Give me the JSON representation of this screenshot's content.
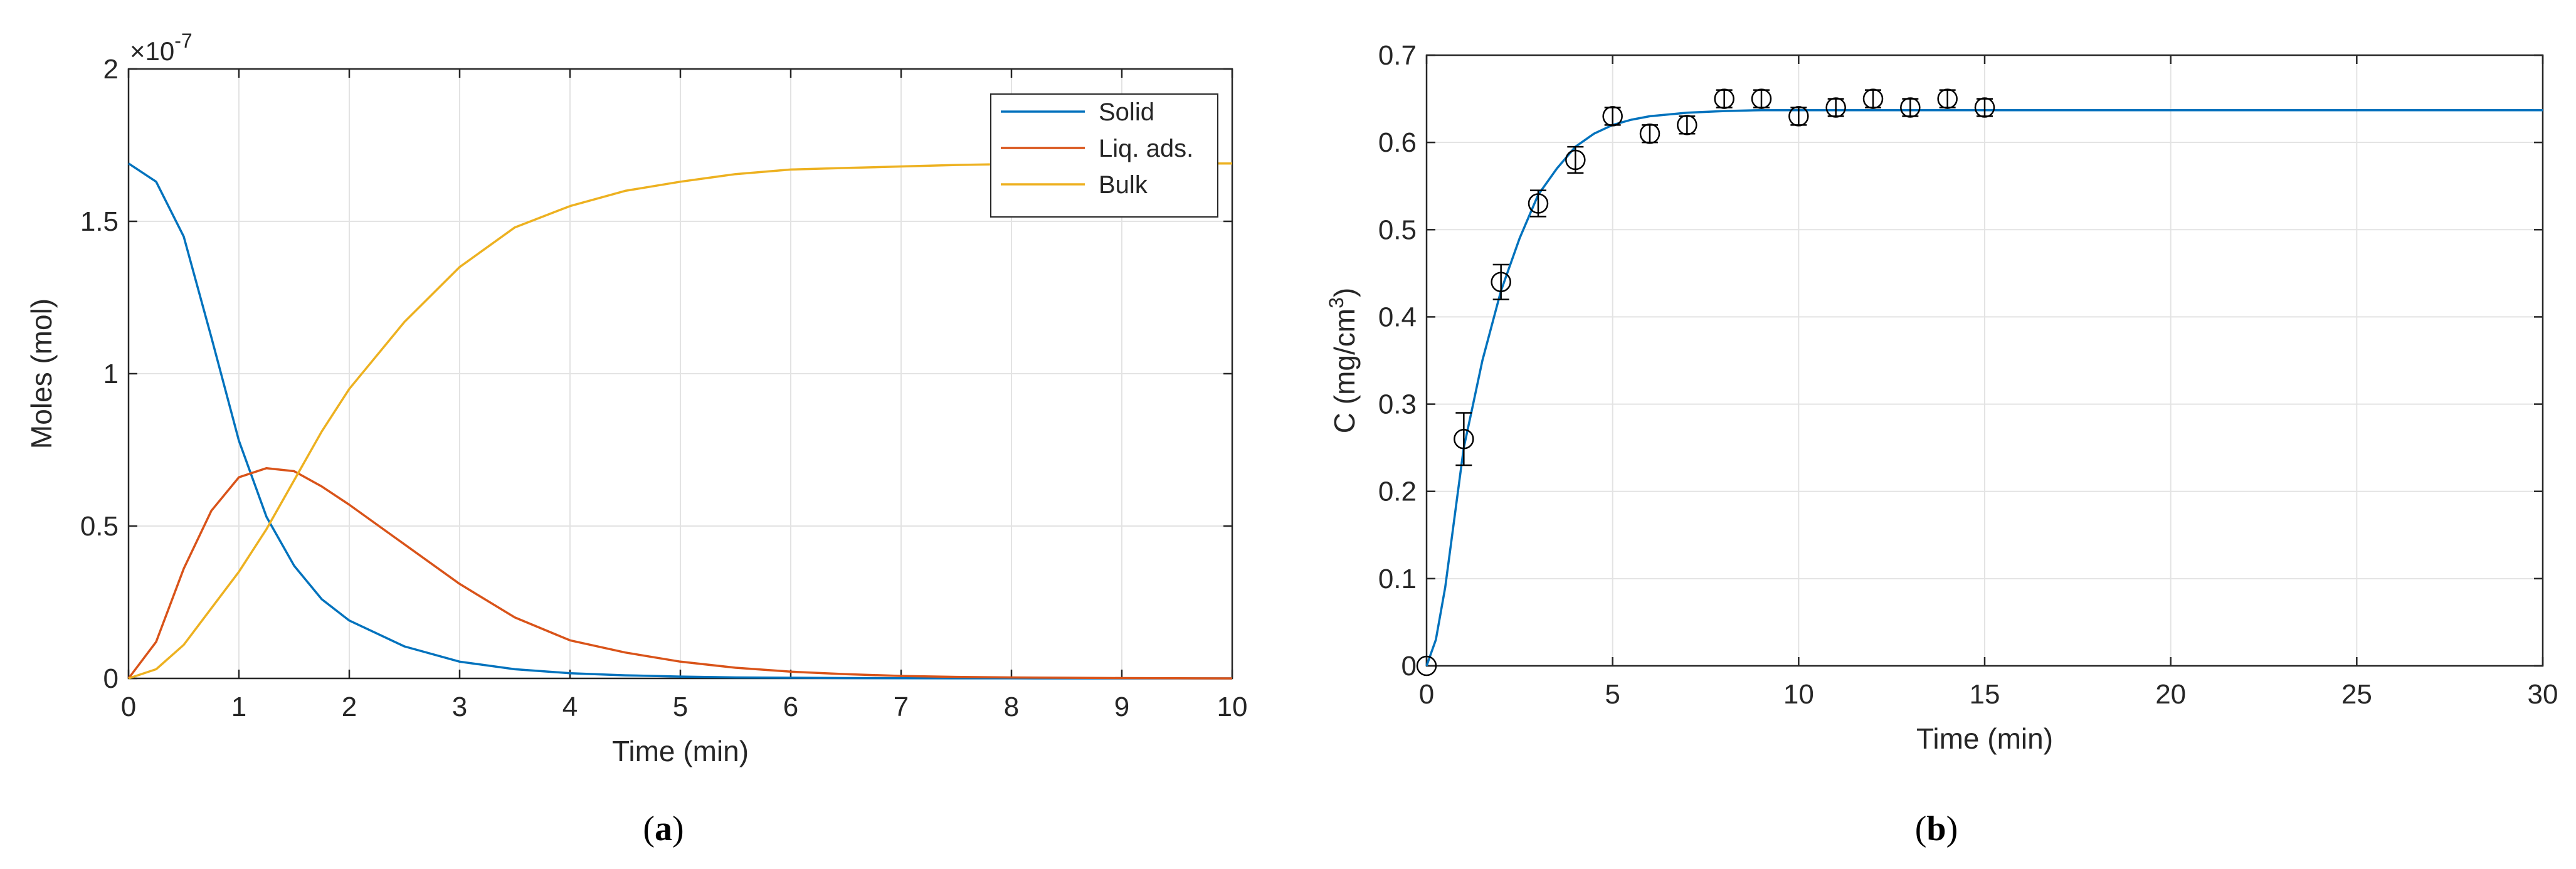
{
  "figure": {
    "panels": [
      {
        "caption_open": "(",
        "caption_letter": "a",
        "caption_close": ")"
      },
      {
        "caption_open": "(",
        "caption_letter": "b",
        "caption_close": ")"
      }
    ]
  },
  "chart_data": [
    {
      "type": "line",
      "panel": "a",
      "xlabel": "Time (min)",
      "ylabel": "Moles (mol)",
      "xlim": [
        0,
        10
      ],
      "ylim": [
        0,
        2
      ],
      "y_exponent_label": "×10",
      "y_exponent_power": "-7",
      "x_ticks": [
        "0",
        "1",
        "2",
        "3",
        "4",
        "5",
        "6",
        "7",
        "8",
        "9",
        "10"
      ],
      "y_ticks": [
        "0",
        "0.5",
        "1",
        "1.5",
        "2"
      ],
      "grid": true,
      "legend_position": "top-right",
      "x": [
        0,
        0.25,
        0.5,
        0.75,
        1.0,
        1.25,
        1.5,
        1.75,
        2.0,
        2.5,
        3.0,
        3.5,
        4.0,
        4.5,
        5.0,
        5.5,
        6.0,
        6.5,
        7.0,
        7.5,
        8.0,
        8.5,
        9.0,
        9.5,
        10.0
      ],
      "series": [
        {
          "name": "Solid",
          "color": "#0072BD",
          "values": [
            1.69,
            1.63,
            1.45,
            1.12,
            0.78,
            0.53,
            0.37,
            0.26,
            0.19,
            0.105,
            0.055,
            0.03,
            0.017,
            0.01,
            0.006,
            0.003,
            0.002,
            0.001,
            0.0006,
            0.0003,
            0.0002,
            0.0001,
            0.0,
            0.0,
            0.0
          ]
        },
        {
          "name": "Liq. ads.",
          "color": "#D95319",
          "values": [
            0.0,
            0.12,
            0.36,
            0.55,
            0.66,
            0.69,
            0.68,
            0.63,
            0.57,
            0.44,
            0.31,
            0.2,
            0.125,
            0.085,
            0.055,
            0.035,
            0.022,
            0.014,
            0.008,
            0.005,
            0.003,
            0.002,
            0.001,
            0.0005,
            0.0
          ]
        },
        {
          "name": "Bulk",
          "color": "#EDB120",
          "values": [
            0.0,
            0.03,
            0.11,
            0.23,
            0.35,
            0.49,
            0.65,
            0.81,
            0.95,
            1.17,
            1.35,
            1.48,
            1.55,
            1.6,
            1.63,
            1.655,
            1.67,
            1.675,
            1.68,
            1.685,
            1.688,
            1.689,
            1.69,
            1.69,
            1.69
          ]
        }
      ]
    },
    {
      "type": "scatter",
      "panel": "b",
      "xlabel": "Time (min)",
      "ylabel_main": "C (mg/cm",
      "ylabel_sup": "3",
      "ylabel_close": ")",
      "xlim": [
        0,
        30
      ],
      "ylim": [
        0,
        0.7
      ],
      "x_ticks": [
        "0",
        "5",
        "10",
        "15",
        "20",
        "25",
        "30"
      ],
      "y_ticks": [
        "0",
        "0.1",
        "0.2",
        "0.3",
        "0.4",
        "0.5",
        "0.6",
        "0.7"
      ],
      "grid": true,
      "series": [
        {
          "kind": "line",
          "color": "#0072BD",
          "x": [
            0,
            0.25,
            0.5,
            0.75,
            1.0,
            1.25,
            1.5,
            2.0,
            2.5,
            3.0,
            3.5,
            4.0,
            4.5,
            5.0,
            5.5,
            6.0,
            7.0,
            8.0,
            9.0,
            10.0,
            15.0,
            20.0,
            25.0,
            30.0
          ],
          "y": [
            0.0,
            0.03,
            0.09,
            0.17,
            0.25,
            0.3,
            0.35,
            0.43,
            0.49,
            0.54,
            0.57,
            0.595,
            0.61,
            0.62,
            0.626,
            0.63,
            0.634,
            0.636,
            0.637,
            0.637,
            0.637,
            0.637,
            0.637,
            0.637
          ]
        },
        {
          "kind": "errorbar",
          "marker": "circle",
          "color": "#000000",
          "x": [
            0,
            1,
            2,
            3,
            4,
            5,
            6,
            7,
            8,
            9,
            10,
            11,
            12,
            13,
            14,
            15
          ],
          "y": [
            0.0,
            0.26,
            0.44,
            0.53,
            0.58,
            0.63,
            0.61,
            0.62,
            0.65,
            0.65,
            0.63,
            0.64,
            0.65,
            0.64,
            0.65,
            0.64
          ],
          "err": [
            0.0,
            0.03,
            0.02,
            0.015,
            0.015,
            0.01,
            0.01,
            0.01,
            0.01,
            0.01,
            0.01,
            0.01,
            0.01,
            0.01,
            0.01,
            0.01
          ]
        }
      ]
    }
  ]
}
